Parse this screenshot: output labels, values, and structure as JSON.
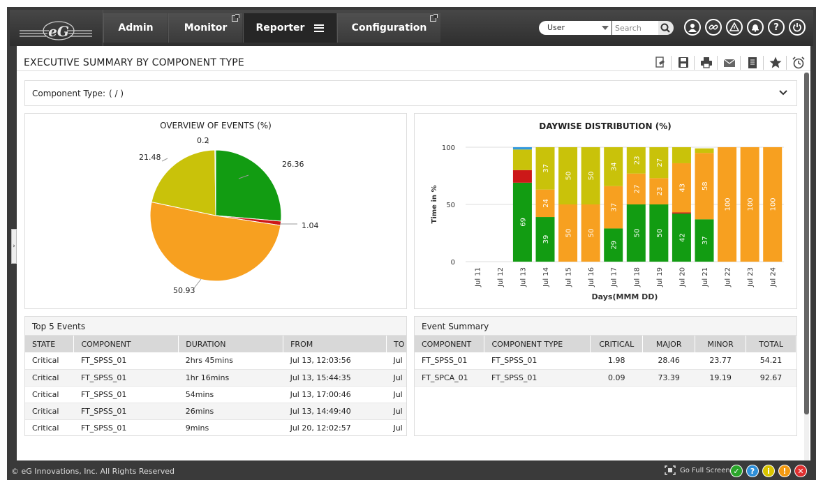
{
  "nav": {
    "tabs": [
      {
        "label": "Admin"
      },
      {
        "label": "Monitor"
      },
      {
        "label": "Reporter"
      },
      {
        "label": "Configuration"
      }
    ],
    "user_select": "User",
    "search_placeholder": "Search"
  },
  "page": {
    "title": "EXECUTIVE SUMMARY BY COMPONENT TYPE",
    "component_type_label": "Component Type:",
    "component_type_value": "( / )"
  },
  "colors": {
    "critical": "#cc1818",
    "major": "#f7a020",
    "minor": "#c9c20a",
    "normal": "#129c12",
    "unknown": "#3399dd"
  },
  "pie": {
    "title": "OVERVIEW OF EVENTS (%)",
    "labels": [
      "26.36",
      "1.04",
      "50.93",
      "21.48",
      "0.2"
    ]
  },
  "chart_data": [
    {
      "type": "pie",
      "title": "OVERVIEW OF EVENTS (%)",
      "values": [
        26.36,
        1.04,
        50.93,
        21.48,
        0.2
      ],
      "colors": [
        "#129c12",
        "#cc1818",
        "#f7a020",
        "#c9c20a",
        "#3399dd"
      ]
    },
    {
      "type": "bar",
      "stacked": true,
      "title": "DAYWISE DISTRIBUTION (%)",
      "xlabel": "Days(MMM DD)",
      "ylabel": "Time in %",
      "ylim": [
        0,
        100
      ],
      "yticks": [
        0,
        50,
        100
      ],
      "categories": [
        "Jul 11",
        "Jul 12",
        "Jul 13",
        "Jul 14",
        "Jul 15",
        "Jul 16",
        "Jul 17",
        "Jul 18",
        "Jul 19",
        "Jul 20",
        "Jul 21",
        "Jul 22",
        "Jul 23",
        "Jul 24"
      ],
      "series": [
        {
          "color": "#129c12",
          "values": [
            0,
            0,
            69,
            39,
            0,
            0,
            29,
            50,
            50,
            42,
            37,
            0,
            0,
            0
          ]
        },
        {
          "color": "#cc1818",
          "values": [
            0,
            0,
            11,
            0,
            0,
            0,
            0,
            0,
            0,
            1,
            0,
            0,
            0,
            0
          ]
        },
        {
          "color": "#f7a020",
          "values": [
            0,
            0,
            0,
            24,
            50,
            50,
            37,
            27,
            23,
            43,
            58,
            100,
            100,
            100
          ]
        },
        {
          "color": "#c9c20a",
          "values": [
            0,
            0,
            18,
            37,
            50,
            50,
            34,
            23,
            27,
            14,
            4,
            0,
            0,
            0
          ]
        },
        {
          "color": "#3399dd",
          "values": [
            0,
            0,
            2,
            0,
            0,
            0,
            0,
            0,
            0,
            0,
            0,
            0,
            0,
            0
          ]
        }
      ],
      "data_labels": [
        {
          "category": "Jul 13",
          "labels": [
            "69"
          ]
        },
        {
          "category": "Jul 14",
          "labels": [
            "39",
            "24",
            "37"
          ]
        },
        {
          "category": "Jul 15",
          "labels": [
            "50",
            "50"
          ]
        },
        {
          "category": "Jul 16",
          "labels": [
            "50",
            "50"
          ]
        },
        {
          "category": "Jul 17",
          "labels": [
            "29",
            "37",
            "34"
          ]
        },
        {
          "category": "Jul 18",
          "labels": [
            "50",
            "27",
            "23"
          ]
        },
        {
          "category": "Jul 19",
          "labels": [
            "50",
            "23",
            "27"
          ]
        },
        {
          "category": "Jul 20",
          "labels": [
            "42",
            "43"
          ]
        },
        {
          "category": "Jul 21",
          "labels": [
            "37",
            "58"
          ]
        },
        {
          "category": "Jul 22",
          "labels": [
            "100"
          ]
        },
        {
          "category": "Jul 23",
          "labels": [
            "100"
          ]
        },
        {
          "category": "Jul 24",
          "labels": [
            "100"
          ]
        }
      ]
    }
  ],
  "top_events": {
    "title": "Top 5 Events",
    "columns": [
      "STATE",
      "COMPONENT",
      "DURATION",
      "FROM",
      "TO"
    ],
    "rows": [
      [
        "Critical",
        "FT_SPSS_01",
        "2hrs 45mins",
        "Jul 13, 12:03:56",
        "Jul"
      ],
      [
        "Critical",
        "FT_SPSS_01",
        "1hr 16mins",
        "Jul 13, 15:44:35",
        "Jul"
      ],
      [
        "Critical",
        "FT_SPSS_01",
        "54mins",
        "Jul 13, 17:00:46",
        "Jul"
      ],
      [
        "Critical",
        "FT_SPSS_01",
        "26mins",
        "Jul 13, 14:49:40",
        "Jul"
      ],
      [
        "Critical",
        "FT_SPSS_01",
        "9mins",
        "Jul 20, 12:02:57",
        "Jul"
      ]
    ]
  },
  "event_summary": {
    "title": "Event Summary",
    "columns": [
      "COMPONENT",
      "COMPONENT TYPE",
      "CRITICAL",
      "MAJOR",
      "MINOR",
      "TOTAL"
    ],
    "rows": [
      [
        "FT_SPSS_01",
        "FT_SPSS_01",
        "1.98",
        "28.46",
        "23.77",
        "54.21"
      ],
      [
        "FT_SPCA_01",
        "FT_SPSS_01",
        "0.09",
        "73.39",
        "19.19",
        "92.67"
      ]
    ]
  },
  "footer": {
    "copyright": "© eG Innovations, Inc. All Rights Reserved",
    "fullscreen": "Go Full Screen"
  }
}
